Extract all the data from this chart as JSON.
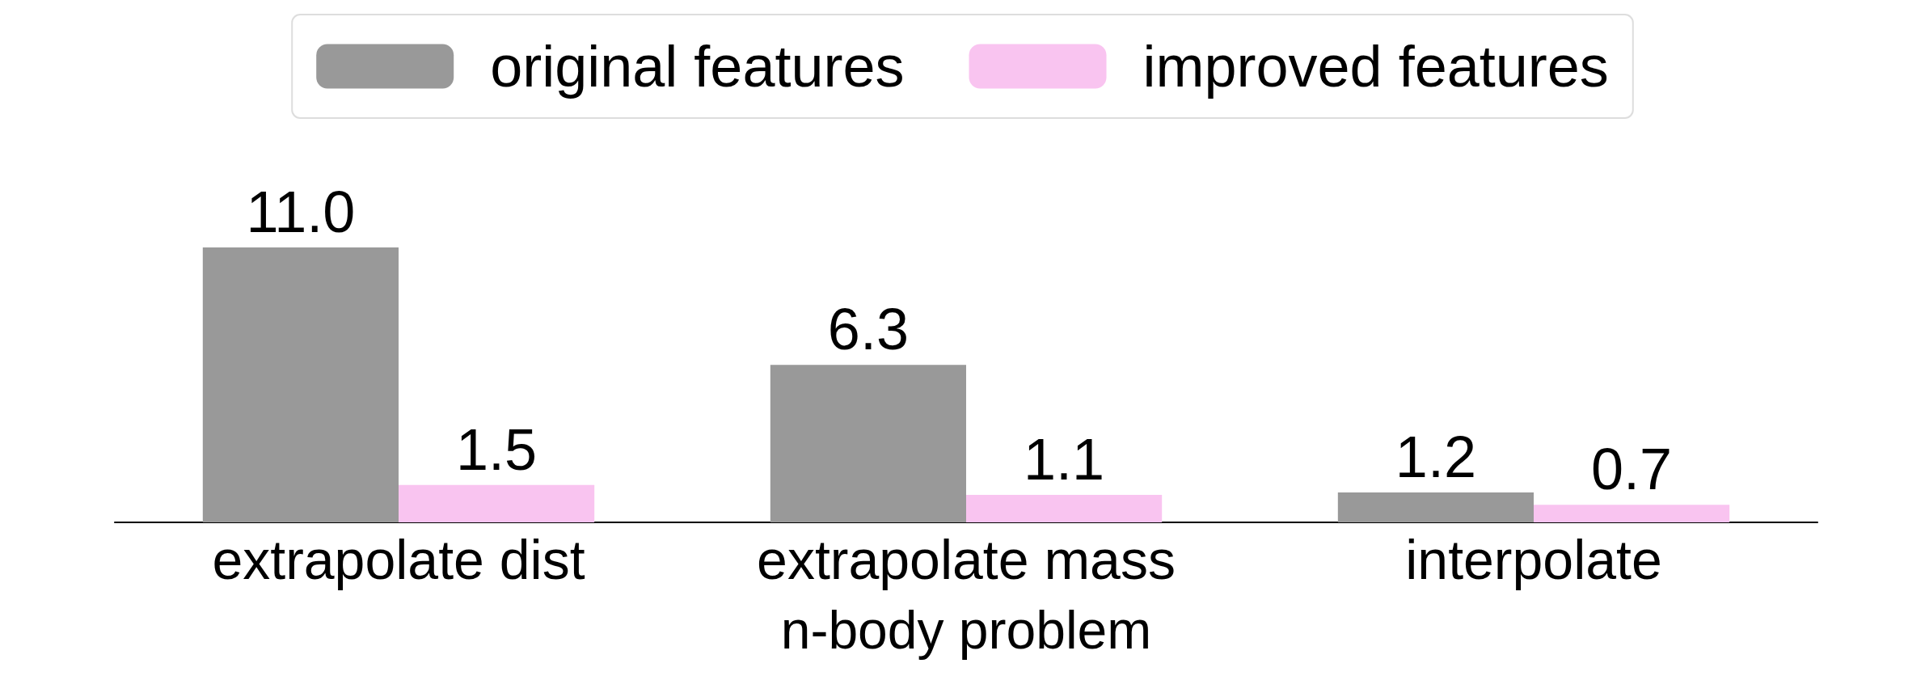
{
  "chart_data": {
    "type": "bar",
    "xlabel": "n-body problem",
    "categories": [
      "extrapolate dist",
      "extrapolate mass",
      "interpolate"
    ],
    "series": [
      {
        "name": "original features",
        "color": "#999999",
        "values": [
          11.0,
          6.3,
          1.2
        ],
        "value_labels": [
          "11.0",
          "6.3",
          "1.2"
        ]
      },
      {
        "name": "improved features",
        "color": "#f9c4f0",
        "values": [
          1.5,
          1.1,
          0.7
        ],
        "value_labels": [
          "1.5",
          "1.1",
          "0.7"
        ]
      }
    ],
    "legend": "top",
    "grid": false
  }
}
